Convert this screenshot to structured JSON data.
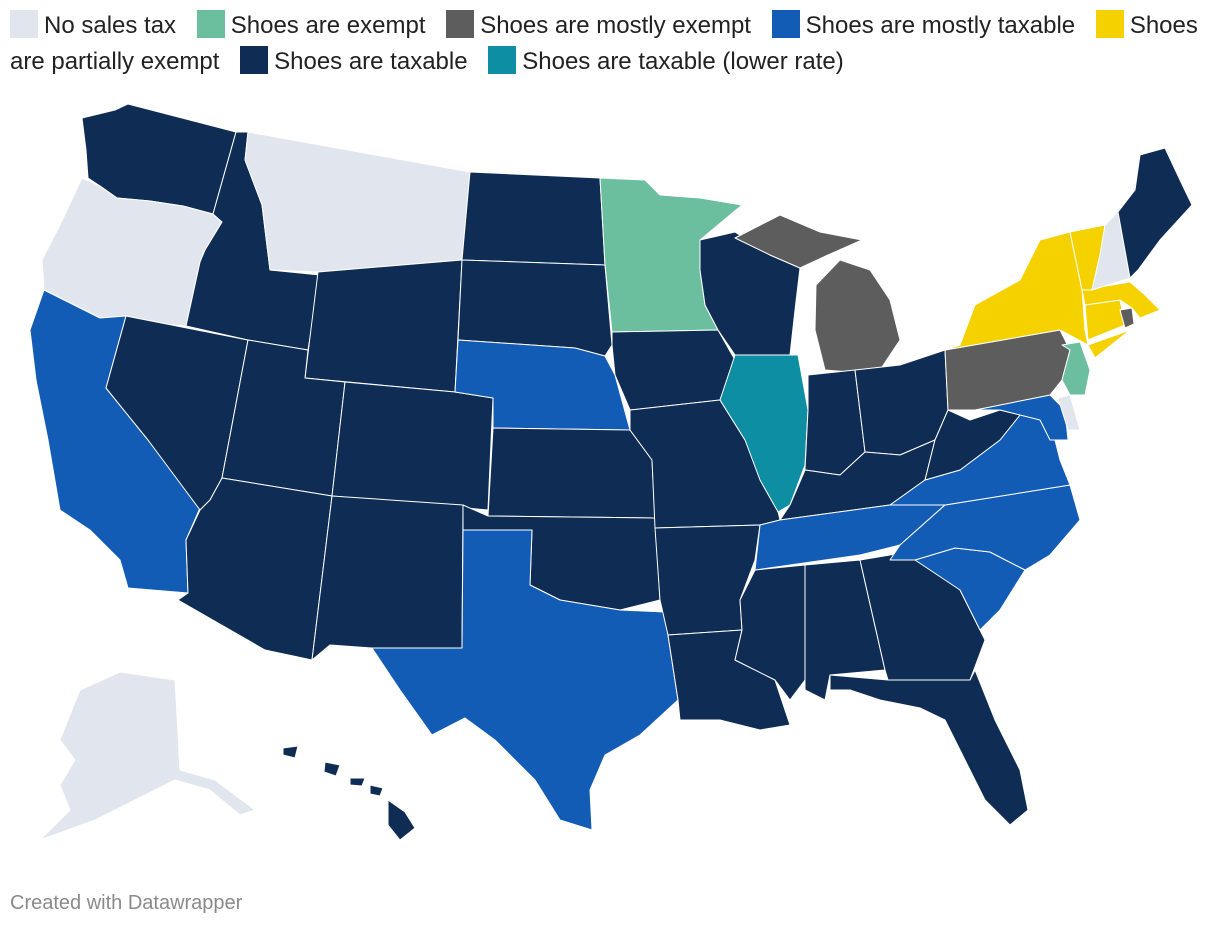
{
  "legend": [
    {
      "key": "none",
      "label": "No sales tax",
      "color": "#e1e5ee"
    },
    {
      "key": "exempt",
      "label": "Shoes are exempt",
      "color": "#6bbf9f"
    },
    {
      "key": "mostly_exempt",
      "label": "Shoes are mostly exempt",
      "color": "#5d5d5d"
    },
    {
      "key": "mostly_taxable",
      "label": "Shoes are mostly taxable",
      "color": "#135cb5"
    },
    {
      "key": "partial",
      "label": "Shoes are partially exempt",
      "color": "#f6d100"
    },
    {
      "key": "taxable",
      "label": "Shoes are taxable",
      "color": "#0f2d54"
    },
    {
      "key": "lower",
      "label": "Shoes are taxable (lower rate)",
      "color": "#0e8ea3"
    }
  ],
  "state_categories": {
    "WA": "taxable",
    "OR": "none",
    "CA": "mostly_taxable",
    "ID": "taxable",
    "NV": "taxable",
    "MT": "none",
    "WY": "taxable",
    "UT": "taxable",
    "AZ": "taxable",
    "CO": "taxable",
    "NM": "taxable",
    "ND": "taxable",
    "SD": "taxable",
    "NE": "mostly_taxable",
    "KS": "taxable",
    "OK": "taxable",
    "TX": "mostly_taxable",
    "MN": "exempt",
    "IA": "taxable",
    "MO": "taxable",
    "AR": "taxable",
    "LA": "taxable",
    "WI": "taxable",
    "IL": "lower",
    "MI": "mostly_exempt",
    "IN": "taxable",
    "OH": "taxable",
    "KY": "taxable",
    "TN": "mostly_taxable",
    "MS": "taxable",
    "AL": "taxable",
    "GA": "taxable",
    "FL": "taxable",
    "SC": "mostly_taxable",
    "NC": "mostly_taxable",
    "VA": "mostly_taxable",
    "WV": "taxable",
    "MD": "mostly_taxable",
    "DE": "none",
    "PA": "mostly_exempt",
    "NJ": "exempt",
    "NY": "partial",
    "CT": "partial",
    "RI": "mostly_exempt",
    "MA": "partial",
    "VT": "partial",
    "NH": "none",
    "ME": "taxable",
    "AK": "none",
    "HI": "taxable"
  },
  "credit": "Created with Datawrapper"
}
